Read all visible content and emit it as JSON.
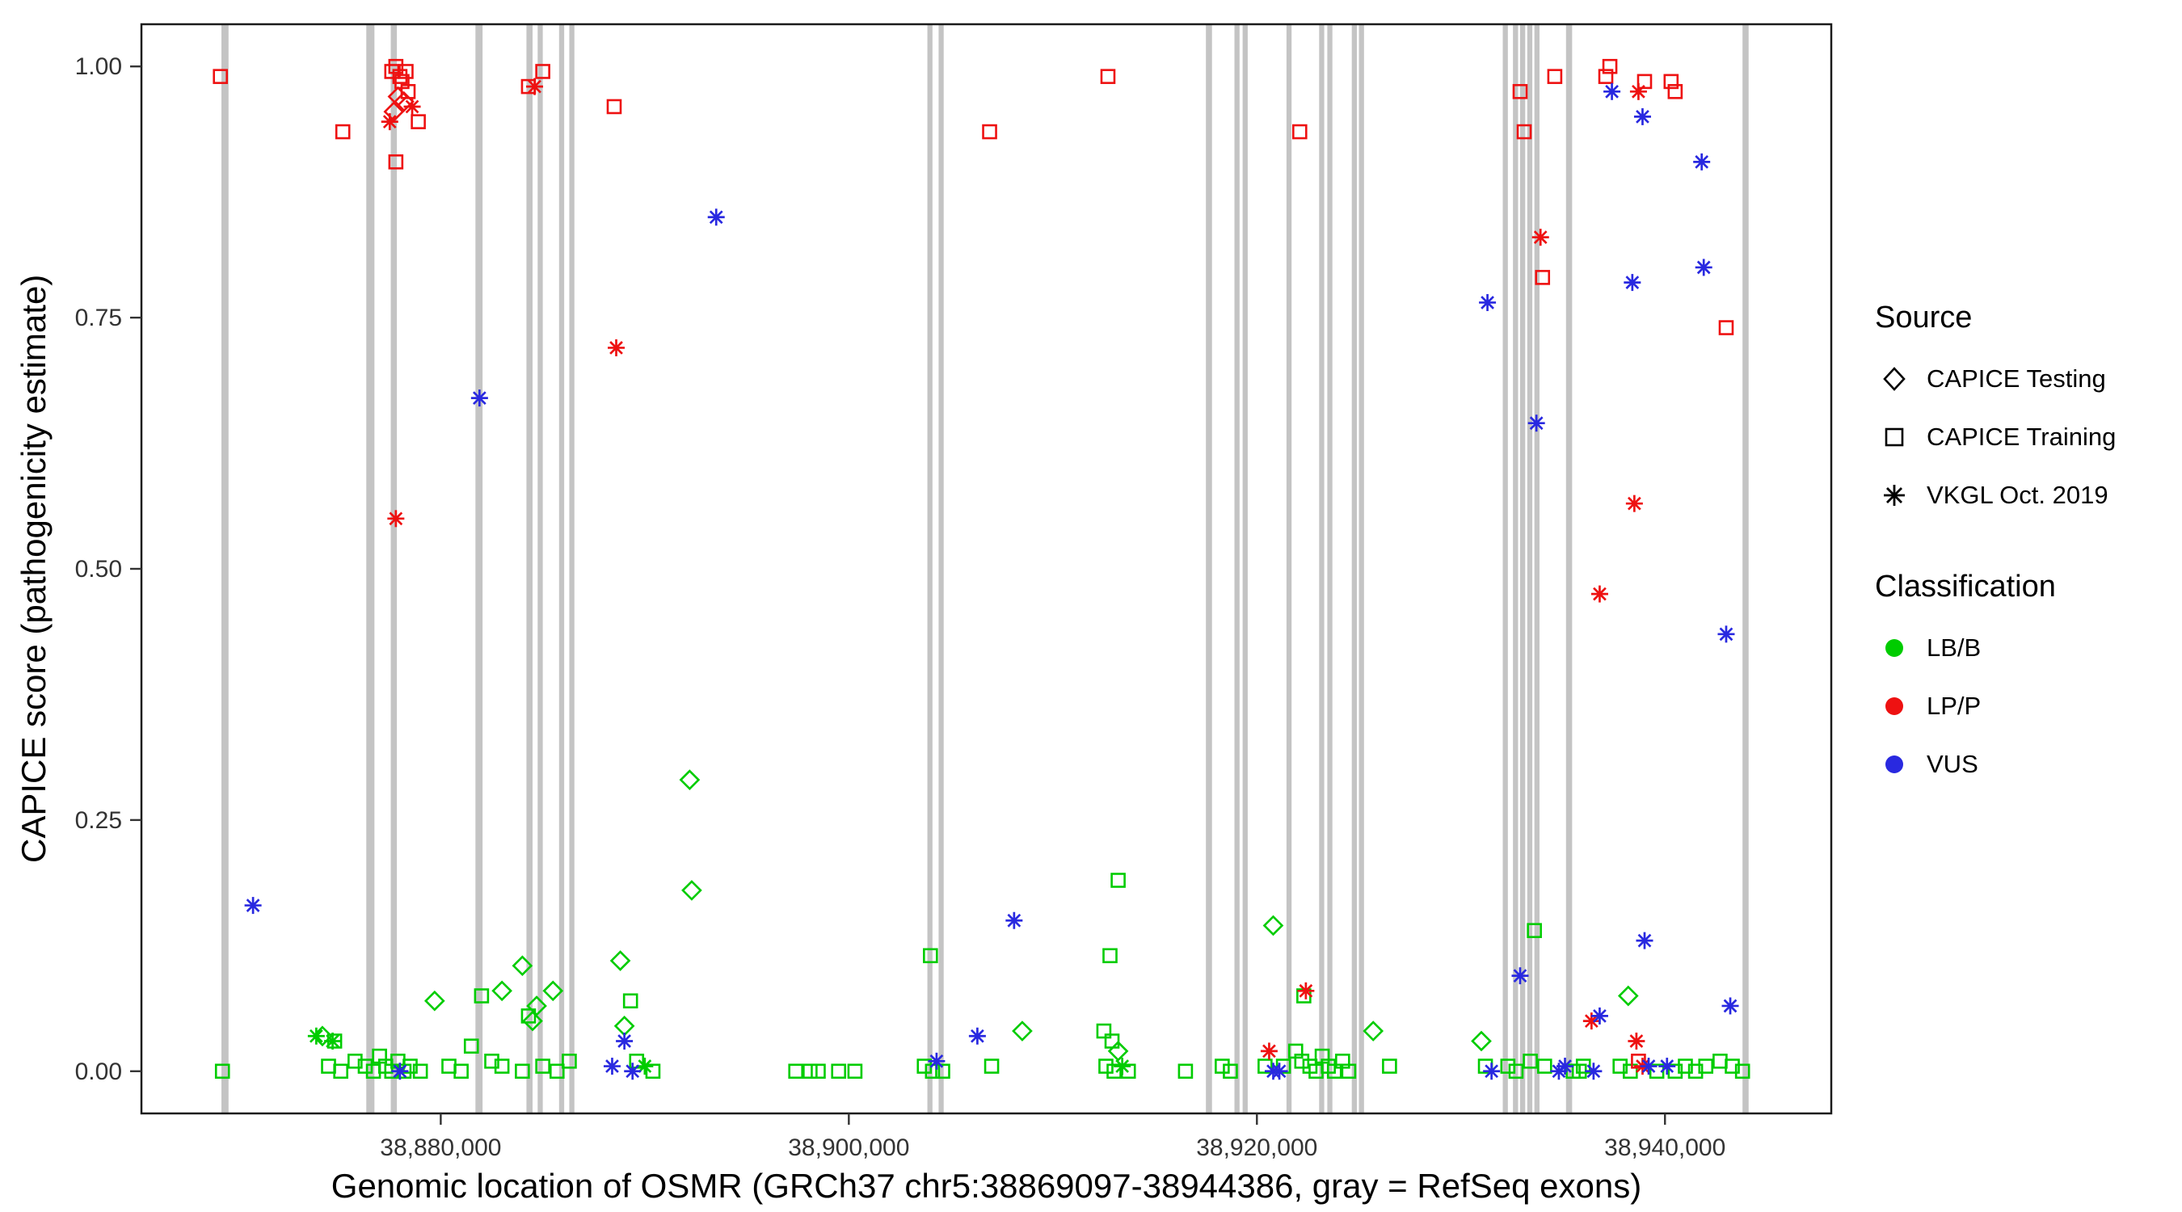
{
  "axes": {
    "x_title": "Genomic location of OSMR (GRCh37 chr5:38869097-38944386, gray = RefSeq exons)",
    "y_title": "CAPICE score (pathogenicity estimate)"
  },
  "legend": {
    "source": {
      "title": "Source",
      "items": [
        {
          "label": "CAPICE Testing",
          "shape": "diamond"
        },
        {
          "label": "CAPICE Training",
          "shape": "square"
        },
        {
          "label": "VKGL Oct. 2019",
          "shape": "asterisk"
        }
      ]
    },
    "classification": {
      "title": "Classification",
      "items": [
        {
          "label": "LB/B",
          "color_key": "lbb"
        },
        {
          "label": "LP/P",
          "color_key": "lpp"
        },
        {
          "label": "VUS",
          "color_key": "vus"
        }
      ]
    }
  },
  "colors": {
    "lbb": "#00cc00",
    "lpp": "#ee1111",
    "vus": "#2929e0",
    "exon": "#c4c4c4",
    "axis_text": "#333333",
    "panel_border": "#1a1a1a"
  },
  "chart_data": {
    "type": "scatter",
    "title": "",
    "xlabel": "Genomic location of OSMR (GRCh37 chr5:38869097-38944386, gray = RefSeq exons)",
    "ylabel": "CAPICE score (pathogenicity estimate)",
    "xlim": [
      38865330,
      38948150
    ],
    "ylim": [
      -0.042,
      1.042
    ],
    "grid": false,
    "legend_position": "right",
    "x_ticks": [
      {
        "value": 38880000,
        "label": "38,880,000"
      },
      {
        "value": 38900000,
        "label": "38,900,000"
      },
      {
        "value": 38920000,
        "label": "38,920,000"
      },
      {
        "value": 38940000,
        "label": "38,940,000"
      }
    ],
    "y_ticks": [
      {
        "value": 0.0,
        "label": "0.00"
      },
      {
        "value": 0.25,
        "label": "0.25"
      },
      {
        "value": 0.5,
        "label": "0.50"
      },
      {
        "value": 0.75,
        "label": "0.75"
      },
      {
        "value": 1.0,
        "label": "1.00"
      }
    ],
    "exons": [
      [
        38869250,
        38869600
      ],
      [
        38876350,
        38876750
      ],
      [
        38877550,
        38877850
      ],
      [
        38881700,
        38882050
      ],
      [
        38884200,
        38884500
      ],
      [
        38884750,
        38885000
      ],
      [
        38885800,
        38886050
      ],
      [
        38886300,
        38886550
      ],
      [
        38903850,
        38904100
      ],
      [
        38904400,
        38904650
      ],
      [
        38917500,
        38917800
      ],
      [
        38918900,
        38919150
      ],
      [
        38919300,
        38919550
      ],
      [
        38921450,
        38921700
      ],
      [
        38923050,
        38923300
      ],
      [
        38923450,
        38923700
      ],
      [
        38924650,
        38924900
      ],
      [
        38925000,
        38925250
      ],
      [
        38932050,
        38932300
      ],
      [
        38932550,
        38932800
      ],
      [
        38932900,
        38933150
      ],
      [
        38933250,
        38933500
      ],
      [
        38933600,
        38933850
      ],
      [
        38935150,
        38935450
      ],
      [
        38943800,
        38944100
      ]
    ],
    "series": [
      {
        "name": "CAPICE Training",
        "shape": "square",
        "groups": {
          "lbb": [
            [
              38869300,
              0
            ],
            [
              38874500,
              0.005
            ],
            [
              38874800,
              0.03
            ],
            [
              38875100,
              0
            ],
            [
              38875800,
              0.01
            ],
            [
              38876300,
              0.005
            ],
            [
              38876700,
              0
            ],
            [
              38877000,
              0.015
            ],
            [
              38877300,
              0.005
            ],
            [
              38877600,
              0
            ],
            [
              38877900,
              0.01
            ],
            [
              38878200,
              0
            ],
            [
              38878500,
              0.005
            ],
            [
              38879000,
              0
            ],
            [
              38880400,
              0.005
            ],
            [
              38881000,
              0
            ],
            [
              38881500,
              0.025
            ],
            [
              38882000,
              0.075
            ],
            [
              38882500,
              0.01
            ],
            [
              38883000,
              0.005
            ],
            [
              38884000,
              0
            ],
            [
              38884300,
              0.055
            ],
            [
              38885000,
              0.005
            ],
            [
              38885700,
              0
            ],
            [
              38886300,
              0.01
            ],
            [
              38889300,
              0.07
            ],
            [
              38889600,
              0.01
            ],
            [
              38890400,
              0
            ],
            [
              38897400,
              0
            ],
            [
              38898100,
              0
            ],
            [
              38898500,
              0
            ],
            [
              38899500,
              0
            ],
            [
              38900300,
              0
            ],
            [
              38903700,
              0.005
            ],
            [
              38904000,
              0.115
            ],
            [
              38904100,
              0
            ],
            [
              38904600,
              0
            ],
            [
              38907000,
              0.005
            ],
            [
              38912500,
              0.04
            ],
            [
              38912600,
              0.005
            ],
            [
              38912800,
              0.115
            ],
            [
              38912900,
              0.03
            ],
            [
              38913000,
              0
            ],
            [
              38913200,
              0.19
            ],
            [
              38913700,
              0
            ],
            [
              38916500,
              0
            ],
            [
              38918300,
              0.005
            ],
            [
              38918700,
              0
            ],
            [
              38920400,
              0.005
            ],
            [
              38921300,
              0.005
            ],
            [
              38921900,
              0.02
            ],
            [
              38922200,
              0.01
            ],
            [
              38922300,
              0.075
            ],
            [
              38922600,
              0.005
            ],
            [
              38922900,
              0
            ],
            [
              38923200,
              0.015
            ],
            [
              38923500,
              0.005
            ],
            [
              38923800,
              0
            ],
            [
              38924200,
              0.01
            ],
            [
              38924500,
              0
            ],
            [
              38926500,
              0.005
            ],
            [
              38931200,
              0.005
            ],
            [
              38932300,
              0.005
            ],
            [
              38932700,
              0
            ],
            [
              38933400,
              0.01
            ],
            [
              38933600,
              0.14
            ],
            [
              38934100,
              0.005
            ],
            [
              38935500,
              0
            ],
            [
              38935800,
              0
            ],
            [
              38936000,
              0.005
            ],
            [
              38937800,
              0.005
            ],
            [
              38938300,
              0
            ],
            [
              38939600,
              0
            ],
            [
              38940500,
              0
            ],
            [
              38941000,
              0.005
            ],
            [
              38941500,
              0
            ],
            [
              38942000,
              0.005
            ],
            [
              38942700,
              0.01
            ],
            [
              38943300,
              0.005
            ],
            [
              38943800,
              0
            ]
          ],
          "lpp": [
            [
              38869200,
              0.99
            ],
            [
              38875200,
              0.935
            ],
            [
              38877600,
              0.995
            ],
            [
              38877800,
              1.0
            ],
            [
              38878000,
              0.99
            ],
            [
              38878100,
              0.985
            ],
            [
              38878300,
              0.995
            ],
            [
              38878400,
              0.975
            ],
            [
              38878900,
              0.945
            ],
            [
              38877800,
              0.905
            ],
            [
              38884300,
              0.98
            ],
            [
              38885000,
              0.995
            ],
            [
              38888500,
              0.96
            ],
            [
              38906900,
              0.935
            ],
            [
              38912700,
              0.99
            ],
            [
              38922100,
              0.935
            ],
            [
              38932900,
              0.975
            ],
            [
              38933100,
              0.935
            ],
            [
              38934600,
              0.99
            ],
            [
              38934000,
              0.79
            ],
            [
              38937100,
              0.99
            ],
            [
              38937300,
              1.0
            ],
            [
              38939000,
              0.985
            ],
            [
              38940300,
              0.985
            ],
            [
              38940500,
              0.975
            ],
            [
              38943000,
              0.74
            ],
            [
              38938700,
              0.01
            ]
          ],
          "vus": []
        }
      },
      {
        "name": "CAPICE Testing",
        "shape": "diamond",
        "groups": {
          "lbb": [
            [
              38874200,
              0.035
            ],
            [
              38879700,
              0.07
            ],
            [
              38883000,
              0.08
            ],
            [
              38884000,
              0.105
            ],
            [
              38884500,
              0.05
            ],
            [
              38884700,
              0.065
            ],
            [
              38885500,
              0.08
            ],
            [
              38888800,
              0.11
            ],
            [
              38889000,
              0.045
            ],
            [
              38892200,
              0.29
            ],
            [
              38892300,
              0.18
            ],
            [
              38908500,
              0.04
            ],
            [
              38913200,
              0.02
            ],
            [
              38920800,
              0.145
            ],
            [
              38925700,
              0.04
            ],
            [
              38931000,
              0.03
            ],
            [
              38938200,
              0.075
            ]
          ],
          "lpp": [
            [
              38877700,
              0.955
            ],
            [
              38877900,
              0.97
            ],
            [
              38878200,
              0.965
            ]
          ],
          "vus": []
        }
      },
      {
        "name": "VKGL Oct. 2019",
        "shape": "asterisk",
        "groups": {
          "lbb": [
            [
              38873900,
              0.035
            ],
            [
              38874700,
              0.03
            ],
            [
              38890000,
              0.005
            ],
            [
              38913400,
              0.005
            ]
          ],
          "lpp": [
            [
              38877500,
              0.945
            ],
            [
              38878600,
              0.96
            ],
            [
              38877800,
              0.55
            ],
            [
              38884600,
              0.98
            ],
            [
              38888600,
              0.72
            ],
            [
              38920600,
              0.02
            ],
            [
              38922400,
              0.08
            ],
            [
              38933900,
              0.83
            ],
            [
              38936400,
              0.05
            ],
            [
              38936800,
              0.475
            ],
            [
              38938500,
              0.565
            ],
            [
              38938600,
              0.03
            ],
            [
              38938700,
              0.975
            ],
            [
              38938900,
              0.005
            ]
          ],
          "vus": [
            [
              38870800,
              0.165
            ],
            [
              38878000,
              0
            ],
            [
              38881900,
              0.67
            ],
            [
              38888400,
              0.005
            ],
            [
              38889000,
              0.03
            ],
            [
              38889400,
              0
            ],
            [
              38893500,
              0.85
            ],
            [
              38904300,
              0.01
            ],
            [
              38906300,
              0.035
            ],
            [
              38908100,
              0.15
            ],
            [
              38920800,
              0
            ],
            [
              38921100,
              0
            ],
            [
              38931300,
              0.765
            ],
            [
              38931500,
              0
            ],
            [
              38932900,
              0.095
            ],
            [
              38933700,
              0.645
            ],
            [
              38934800,
              0
            ],
            [
              38935100,
              0.005
            ],
            [
              38936500,
              0
            ],
            [
              38936800,
              0.055
            ],
            [
              38937400,
              0.975
            ],
            [
              38938900,
              0.95
            ],
            [
              38938400,
              0.785
            ],
            [
              38939000,
              0.13
            ],
            [
              38939200,
              0.005
            ],
            [
              38940100,
              0.005
            ],
            [
              38941800,
              0.905
            ],
            [
              38941900,
              0.8
            ],
            [
              38943000,
              0.435
            ],
            [
              38943200,
              0.065
            ]
          ]
        }
      }
    ]
  }
}
